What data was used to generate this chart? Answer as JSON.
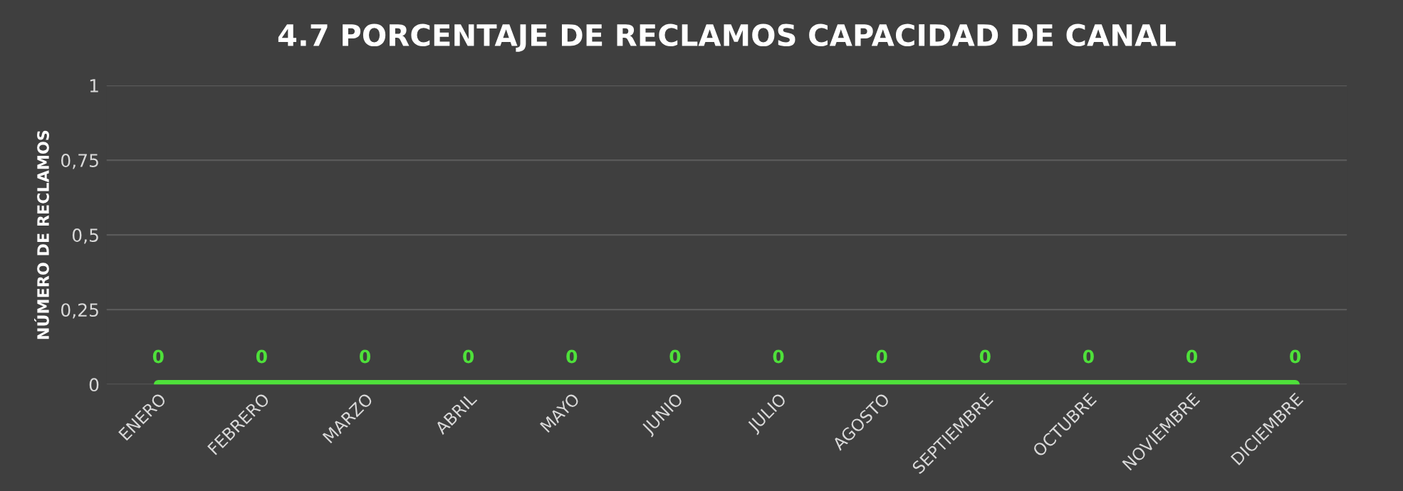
{
  "chart_data": {
    "type": "line",
    "title": "4.7 PORCENTAJE DE RECLAMOS CAPACIDAD DE CANAL",
    "ylabel": "NÚMERO DE RECLAMOS",
    "categories": [
      "ENERO",
      "FEBRERO",
      "MARZO",
      "ABRIL",
      "MAYO",
      "JUNIO",
      "JULIO",
      "AGOSTO",
      "SEPTIEMBRE",
      "OCTUBRE",
      "NOVIEMBRE",
      "DICIEMBRE"
    ],
    "series": [
      {
        "color": "#4ee03a",
        "values": [
          0,
          0,
          0,
          0,
          0,
          0,
          0,
          0,
          0,
          0,
          0,
          0
        ]
      }
    ],
    "ylim": [
      0,
      1
    ],
    "yticks": [
      0,
      {
        "value": 0.25,
        "label": "0,25"
      },
      {
        "value": 0.5,
        "label": "0,5"
      },
      {
        "value": 0.75,
        "label": "0,75"
      },
      1
    ],
    "grid": "y",
    "data_labels": true,
    "marker": "none",
    "line_style": "solid"
  }
}
